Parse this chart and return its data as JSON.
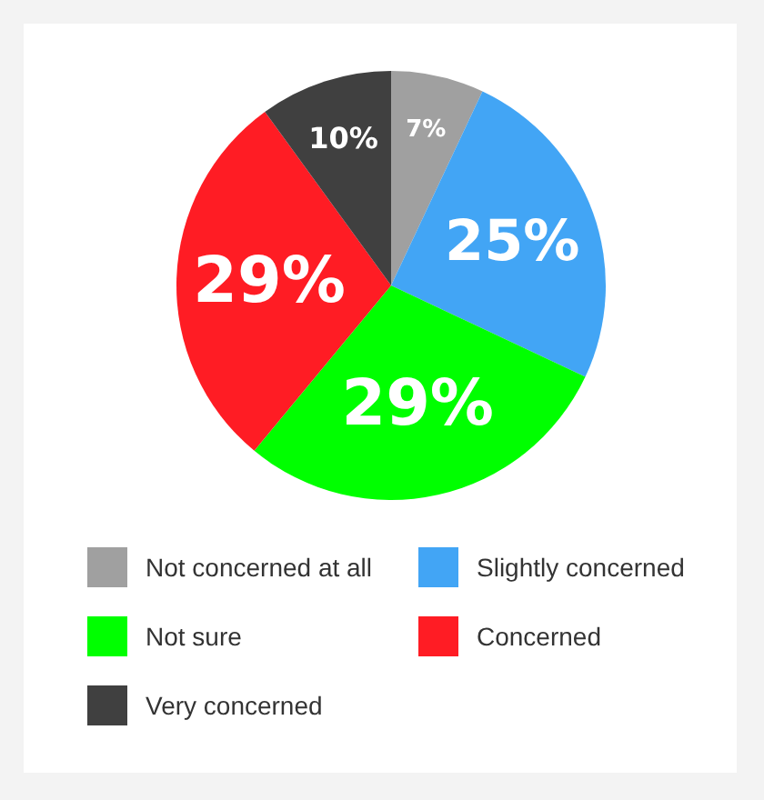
{
  "chart_data": {
    "type": "pie",
    "categories": [
      "Not concerned at all",
      "Slightly concerned",
      "Not sure",
      "Concerned",
      "Very concerned"
    ],
    "values": [
      7,
      25,
      29,
      29,
      10
    ],
    "colors": [
      "#a0a0a0",
      "#42a5f5",
      "#00ff00",
      "#ff1c24",
      "#404040"
    ],
    "value_labels": [
      "7%",
      "25%",
      "29%",
      "29%",
      "10%"
    ],
    "legend": "bottom"
  }
}
